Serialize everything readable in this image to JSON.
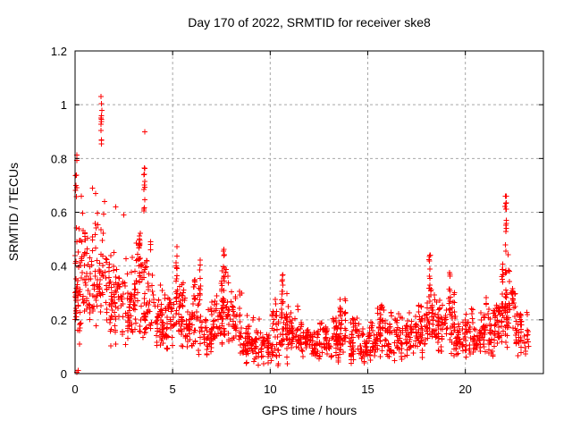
{
  "window": {
    "background": "#ffffff"
  },
  "chart_data": {
    "type": "scatter",
    "title": "Day 170 of 2022, SRMTID for receiver ske8",
    "xlabel": "GPS time / hours",
    "ylabel": "SRMTID / TECUs",
    "xlim": [
      0,
      24
    ],
    "ylim": [
      0,
      1.2
    ],
    "xticks": [
      [
        0,
        "0"
      ],
      [
        5,
        "5"
      ],
      [
        10,
        "10"
      ],
      [
        15,
        "15"
      ],
      [
        20,
        "20"
      ]
    ],
    "yticks": [
      [
        0,
        "0"
      ],
      [
        0.2,
        "0.2"
      ],
      [
        0.4,
        "0.4"
      ],
      [
        0.6,
        "0.6"
      ],
      [
        0.8,
        "0.8"
      ],
      [
        1,
        "1"
      ],
      [
        1.2,
        "1.2"
      ]
    ],
    "grid": true,
    "legend": "none",
    "marker": {
      "shape": "plus",
      "color": "#ff0000",
      "size": 7,
      "stroke_width": 1
    },
    "grid_color": "#a8a8a8",
    "axis_color": "#000000",
    "seed": 170,
    "bands_format": [
      "start_hour",
      "count",
      "y_low",
      "y_high",
      "width_hours_optional_default_0.5"
    ],
    "bands": [
      [
        0.0,
        55,
        0.1,
        0.62
      ],
      [
        0.5,
        45,
        0.18,
        0.58
      ],
      [
        1.0,
        46,
        0.2,
        0.62
      ],
      [
        1.5,
        44,
        0.15,
        0.55
      ],
      [
        2.0,
        45,
        0.13,
        0.5
      ],
      [
        2.5,
        44,
        0.12,
        0.48
      ],
      [
        3.0,
        50,
        0.12,
        0.55
      ],
      [
        3.5,
        50,
        0.12,
        0.5
      ],
      [
        4.0,
        42,
        0.1,
        0.38
      ],
      [
        4.5,
        40,
        0.08,
        0.33
      ],
      [
        5.0,
        44,
        0.1,
        0.4
      ],
      [
        5.5,
        40,
        0.08,
        0.35
      ],
      [
        6.0,
        40,
        0.08,
        0.36
      ],
      [
        6.5,
        38,
        0.07,
        0.3
      ],
      [
        7.0,
        40,
        0.08,
        0.34
      ],
      [
        7.5,
        50,
        0.1,
        0.42
      ],
      [
        8.0,
        40,
        0.07,
        0.32
      ],
      [
        8.5,
        38,
        0.05,
        0.25
      ],
      [
        9.0,
        38,
        0.04,
        0.22
      ],
      [
        9.5,
        35,
        0.03,
        0.2
      ],
      [
        10.0,
        40,
        0.05,
        0.28
      ],
      [
        10.5,
        48,
        0.07,
        0.33
      ],
      [
        11.0,
        40,
        0.07,
        0.27
      ],
      [
        11.5,
        40,
        0.07,
        0.22
      ],
      [
        12.0,
        40,
        0.06,
        0.2
      ],
      [
        12.5,
        40,
        0.06,
        0.2
      ],
      [
        13.0,
        40,
        0.06,
        0.24
      ],
      [
        13.5,
        40,
        0.07,
        0.28
      ],
      [
        14.0,
        40,
        0.06,
        0.25
      ],
      [
        14.5,
        38,
        0.05,
        0.2
      ],
      [
        15.0,
        40,
        0.06,
        0.22
      ],
      [
        15.5,
        40,
        0.07,
        0.26
      ],
      [
        16.0,
        40,
        0.06,
        0.24
      ],
      [
        16.5,
        40,
        0.07,
        0.27
      ],
      [
        17.0,
        40,
        0.07,
        0.25
      ],
      [
        17.5,
        42,
        0.08,
        0.3
      ],
      [
        18.0,
        44,
        0.1,
        0.35
      ],
      [
        18.5,
        40,
        0.08,
        0.3
      ],
      [
        19.0,
        42,
        0.08,
        0.32
      ],
      [
        19.5,
        40,
        0.06,
        0.25
      ],
      [
        20.0,
        40,
        0.08,
        0.26
      ],
      [
        20.5,
        40,
        0.06,
        0.25
      ],
      [
        21.0,
        42,
        0.08,
        0.3
      ],
      [
        21.5,
        44,
        0.1,
        0.35
      ],
      [
        22.0,
        48,
        0.12,
        0.45
      ],
      [
        22.5,
        40,
        0.07,
        0.3
      ],
      [
        23.0,
        15,
        0.05,
        0.25,
        0.25
      ]
    ],
    "spikes_format": [
      "center_hour",
      "count",
      "y_low",
      "y_high",
      "width_hours"
    ],
    "spikes": [
      [
        0.05,
        22,
        0.12,
        0.83,
        0.1
      ],
      [
        1.34,
        11,
        0.85,
        1.03,
        0.06
      ],
      [
        3.55,
        12,
        0.56,
        0.79,
        0.07
      ],
      [
        3.3,
        8,
        0.42,
        0.58,
        0.08
      ],
      [
        5.2,
        10,
        0.28,
        0.48,
        0.07
      ],
      [
        6.4,
        9,
        0.26,
        0.43,
        0.06
      ],
      [
        7.62,
        14,
        0.24,
        0.47,
        0.08
      ],
      [
        10.62,
        14,
        0.2,
        0.37,
        0.08
      ],
      [
        13.6,
        8,
        0.17,
        0.28,
        0.06
      ],
      [
        18.15,
        12,
        0.24,
        0.44,
        0.07
      ],
      [
        19.2,
        9,
        0.2,
        0.38,
        0.06
      ],
      [
        21.9,
        10,
        0.25,
        0.45,
        0.08
      ],
      [
        22.07,
        18,
        0.28,
        0.67,
        0.08
      ]
    ],
    "outliers": [
      [
        3.58,
        0.9
      ],
      [
        0.1,
        0.005
      ],
      [
        0.16,
        0.012
      ],
      [
        0.9,
        0.69
      ],
      [
        1.06,
        0.67
      ],
      [
        0.32,
        0.66
      ],
      [
        1.52,
        0.64
      ],
      [
        2.08,
        0.62
      ],
      [
        2.5,
        0.59
      ],
      [
        8.55,
        0.3
      ],
      [
        22.05,
        0.66
      ],
      [
        22.1,
        0.635
      ],
      [
        18.2,
        0.44
      ],
      [
        1.32,
        1.03
      ]
    ]
  }
}
